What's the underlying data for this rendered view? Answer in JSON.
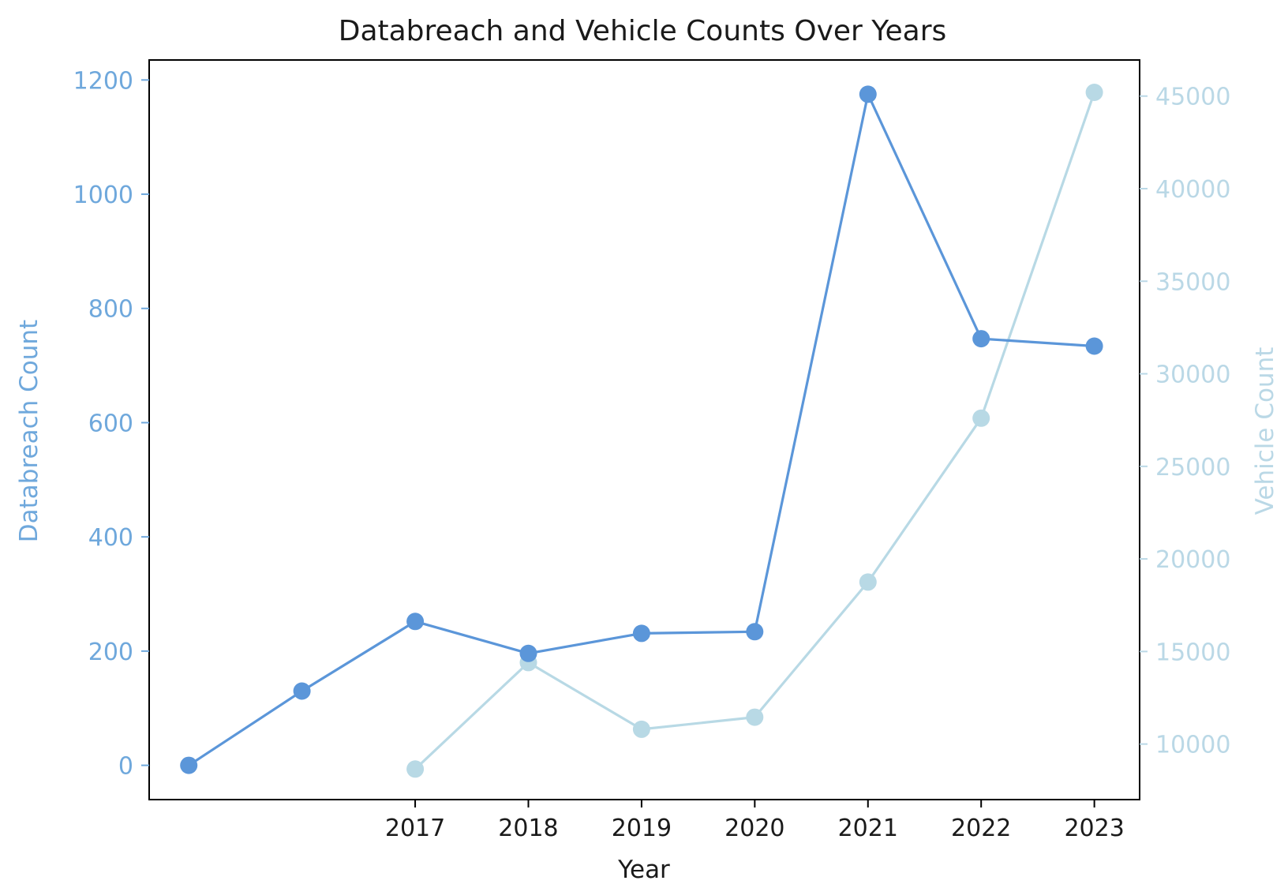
{
  "chart_data": {
    "type": "line",
    "title": "Databreach and Vehicle Counts Over Years",
    "xlabel": "Year",
    "x_tick_labels": [
      "2017",
      "2018",
      "2019",
      "2020",
      "2021",
      "2022",
      "2023"
    ],
    "x": [
      2015,
      2016,
      2017,
      2018,
      2019,
      2020,
      2021,
      2022,
      2023
    ],
    "xlim": [
      2014.65,
      2023.4
    ],
    "y_left": {
      "label": "Databreach Count",
      "color": "#6fa8dc",
      "ticks": [
        0,
        200,
        400,
        600,
        800,
        1000,
        1200
      ],
      "ylim": [
        -60,
        1235
      ]
    },
    "y_right": {
      "label": "Vehicle Count",
      "color": "#bad8e6",
      "ticks": [
        10000,
        15000,
        20000,
        25000,
        30000,
        35000,
        40000,
        45000
      ],
      "ylim": [
        7000,
        46950
      ]
    },
    "series": [
      {
        "name": "Databreach Count",
        "axis": "left",
        "color": "#5b96d9",
        "x": [
          2015,
          2016,
          2017,
          2018,
          2019,
          2020,
          2021,
          2022,
          2023
        ],
        "values": [
          0,
          130,
          252,
          196,
          231,
          234,
          1175,
          747,
          734
        ]
      },
      {
        "name": "Vehicle Count",
        "axis": "right",
        "color": "#b8d9e5",
        "x": [
          2017,
          2018,
          2019,
          2020,
          2021,
          2022,
          2023
        ],
        "values": [
          8650,
          14400,
          10800,
          11450,
          18750,
          27600,
          45200
        ]
      }
    ],
    "grid": false,
    "marker": "circle"
  }
}
